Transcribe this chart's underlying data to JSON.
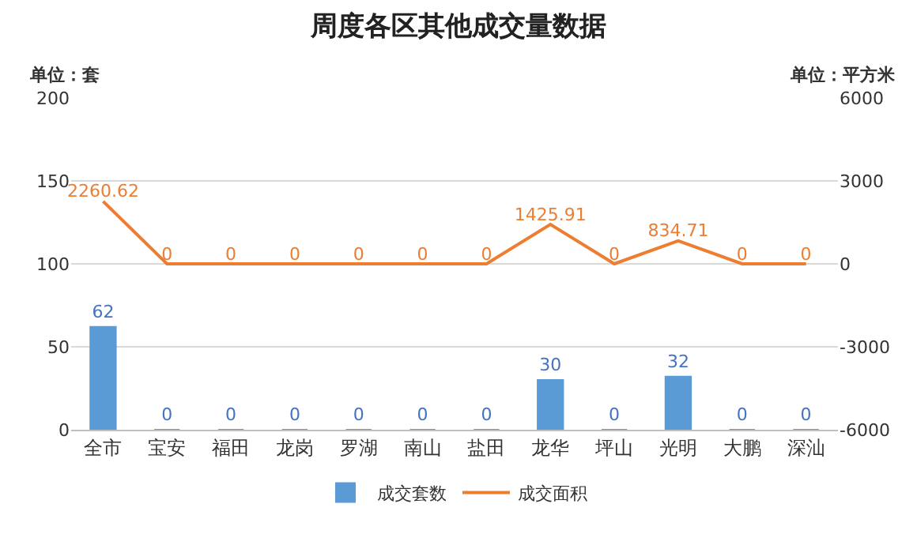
{
  "chart_data": {
    "type": "bar",
    "title": "周度各区其他成交量数据",
    "ylabel": "单位：套",
    "y2label": "单位：平方米",
    "categories": [
      "全市",
      "宝安",
      "福田",
      "龙岗",
      "罗湖",
      "南山",
      "盐田",
      "龙华",
      "坪山",
      "光明",
      "大鹏",
      "深汕"
    ],
    "series": [
      {
        "name": "成交套数",
        "color": "#5b9bd5",
        "values": [
          62,
          0,
          0,
          0,
          0,
          0,
          0,
          30,
          0,
          32,
          0,
          0
        ]
      },
      {
        "name": "成交面积",
        "type": "line",
        "axis": "y2",
        "color": "#ed7d31",
        "values": [
          2260.62,
          0,
          0,
          0,
          0,
          0,
          0,
          1425.91,
          0,
          834.71,
          0,
          0
        ]
      }
    ],
    "ylim": [
      0,
      200
    ],
    "yticks": [
      0,
      50,
      100,
      150,
      200
    ],
    "y2lim": [
      -6000,
      6000
    ],
    "y2ticks": [
      -6000,
      -3000,
      0,
      3000,
      6000
    ],
    "grid": "y",
    "legend": "bottom",
    "data_labels": true,
    "marker": "none"
  }
}
